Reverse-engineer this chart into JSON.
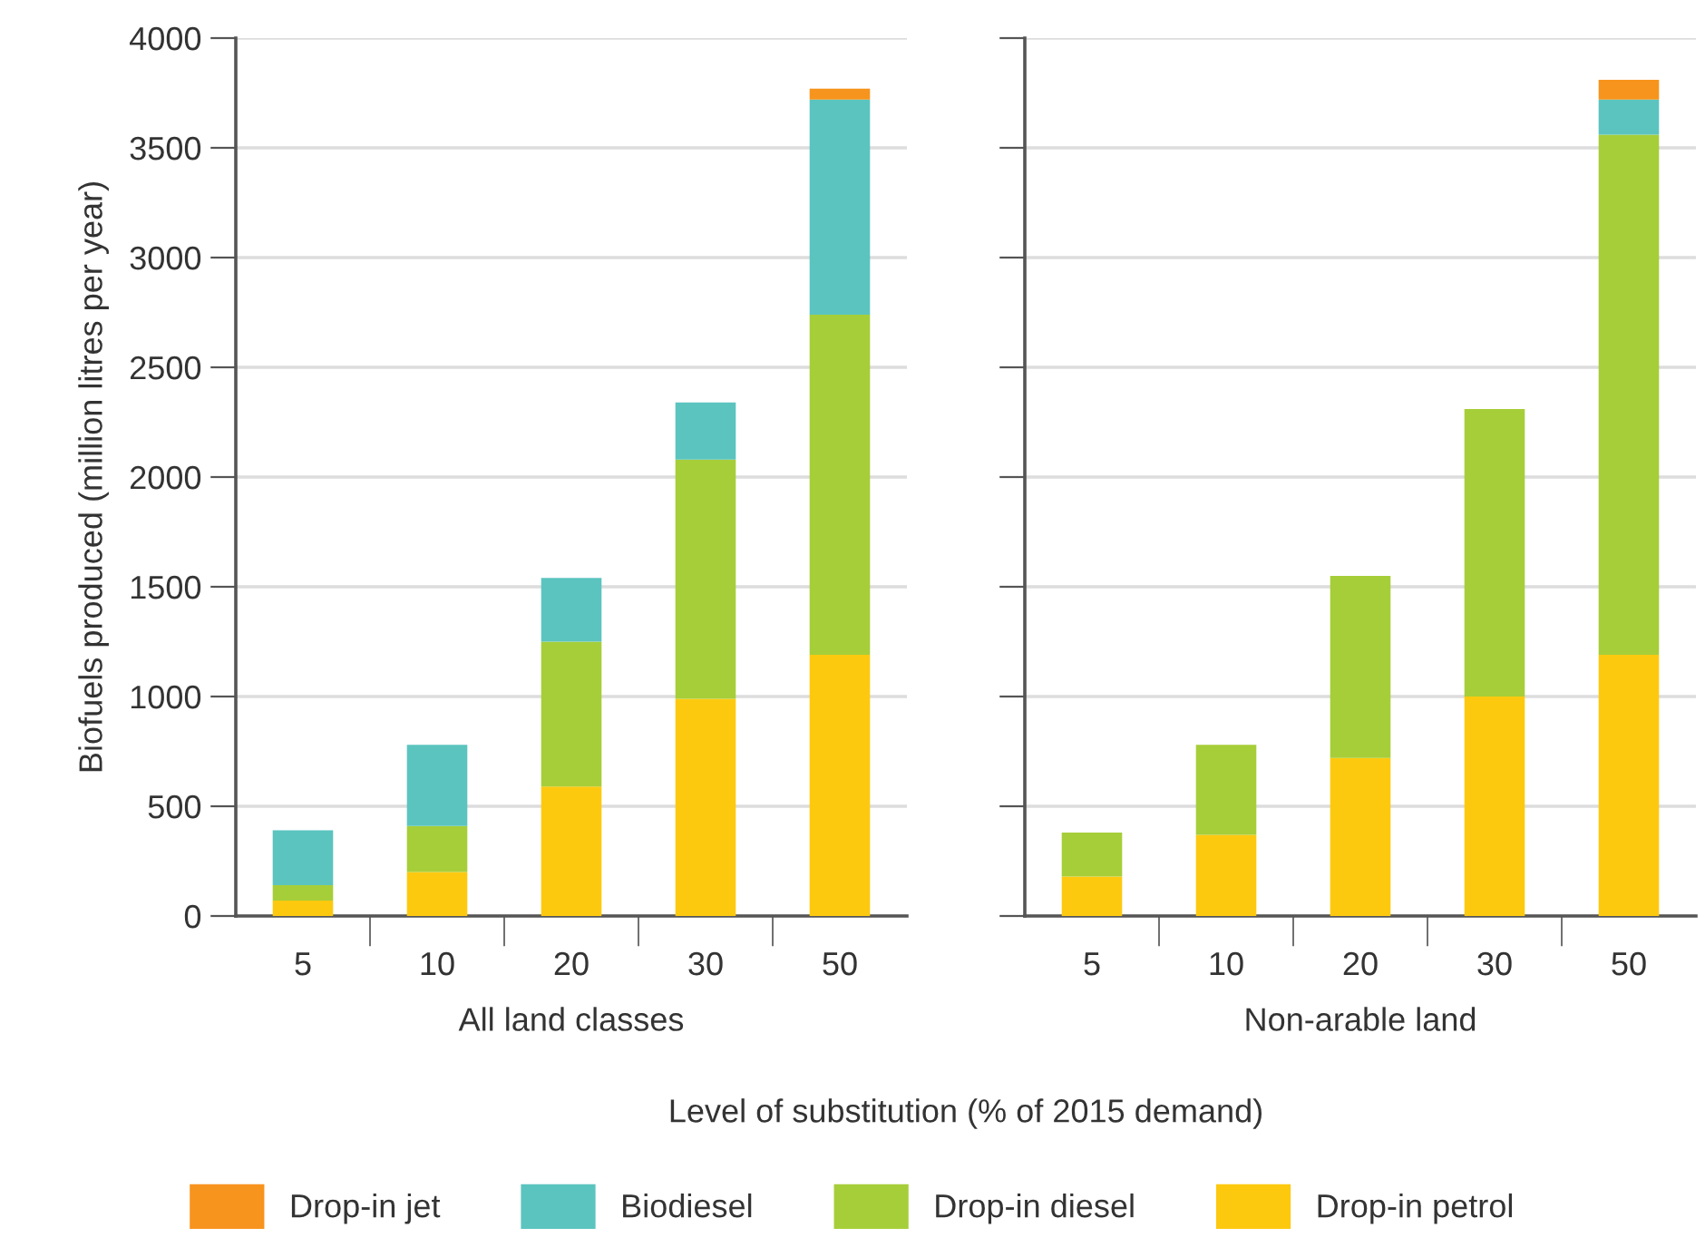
{
  "chart_data": [
    {
      "type": "bar",
      "stacked": true,
      "categories": [
        "5",
        "10",
        "20",
        "30",
        "50"
      ],
      "xlabel": "All land classes",
      "ylabel": "Biofuels produced (million litres per year)",
      "ylim": [
        0,
        4000
      ],
      "yticks": [
        0,
        500,
        1000,
        1500,
        2000,
        2500,
        3000,
        3500,
        4000
      ],
      "grid": "y",
      "legend": "bottom",
      "annotations": [
        "Level of substitution (% of 2015 demand)"
      ],
      "series": [
        {
          "name": "Drop-in petrol",
          "color": "#fdc90f",
          "values": [
            70,
            200,
            590,
            990,
            1190
          ]
        },
        {
          "name": "Drop-in diesel",
          "color": "#a6ce39",
          "values": [
            70,
            210,
            660,
            1090,
            1550
          ]
        },
        {
          "name": "Biodiesel",
          "color": "#5bc4bf",
          "values": [
            250,
            370,
            290,
            260,
            980
          ]
        },
        {
          "name": "Drop-in jet",
          "color": "#f7941d",
          "values": [
            null,
            null,
            null,
            null,
            50
          ]
        }
      ]
    },
    {
      "type": "bar",
      "stacked": true,
      "categories": [
        "5",
        "10",
        "20",
        "30",
        "50"
      ],
      "xlabel": "Non-arable land",
      "ylim": [
        0,
        4000
      ],
      "yticks": [
        0,
        500,
        1000,
        1500,
        2000,
        2500,
        3000,
        3500,
        4000
      ],
      "grid": "y",
      "tick_labels": "x",
      "series": [
        {
          "color": "#fdc90f",
          "values": [
            180,
            370,
            720,
            1000,
            1190
          ]
        },
        {
          "color": "#a6ce39",
          "values": [
            200,
            410,
            830,
            1310,
            2370
          ]
        },
        {
          "color": "#5bc4bf",
          "values": [
            null,
            null,
            null,
            null,
            160
          ]
        },
        {
          "color": "#f7941d",
          "values": [
            null,
            null,
            null,
            null,
            90
          ]
        }
      ]
    }
  ]
}
